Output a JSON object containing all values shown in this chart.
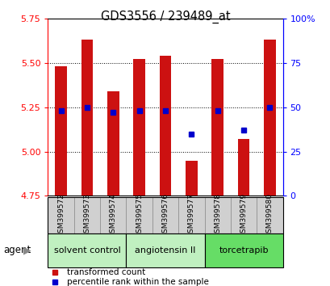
{
  "title": "GDS3556 / 239489_at",
  "samples": [
    "GSM399572",
    "GSM399573",
    "GSM399574",
    "GSM399575",
    "GSM399576",
    "GSM399577",
    "GSM399578",
    "GSM399579",
    "GSM399580"
  ],
  "bar_values": [
    5.48,
    5.63,
    5.34,
    5.52,
    5.54,
    4.95,
    5.52,
    5.07,
    5.63
  ],
  "percentile_values": [
    48,
    50,
    47,
    48,
    48,
    35,
    48,
    37,
    50
  ],
  "bar_color": "#cc1111",
  "dot_color": "#0000cc",
  "ymin": 4.75,
  "ymax": 5.75,
  "yticks_left": [
    4.75,
    5.0,
    5.25,
    5.5,
    5.75
  ],
  "yticks_right": [
    0,
    25,
    50,
    75,
    100
  ],
  "grid_lines": [
    5.0,
    5.25,
    5.5
  ],
  "groups": [
    {
      "label": "solvent control",
      "start": 0,
      "end": 3,
      "color": "#c0f0c0"
    },
    {
      "label": "angiotensin II",
      "start": 3,
      "end": 6,
      "color": "#c0f0c0"
    },
    {
      "label": "torcetrapib",
      "start": 6,
      "end": 9,
      "color": "#66dd66"
    }
  ],
  "legend_bar_label": "transformed count",
  "legend_dot_label": "percentile rank within the sample",
  "agent_label": "agent",
  "bar_width": 0.45,
  "sample_box_color": "#d0d0d0",
  "sample_box_edge": "#888888"
}
